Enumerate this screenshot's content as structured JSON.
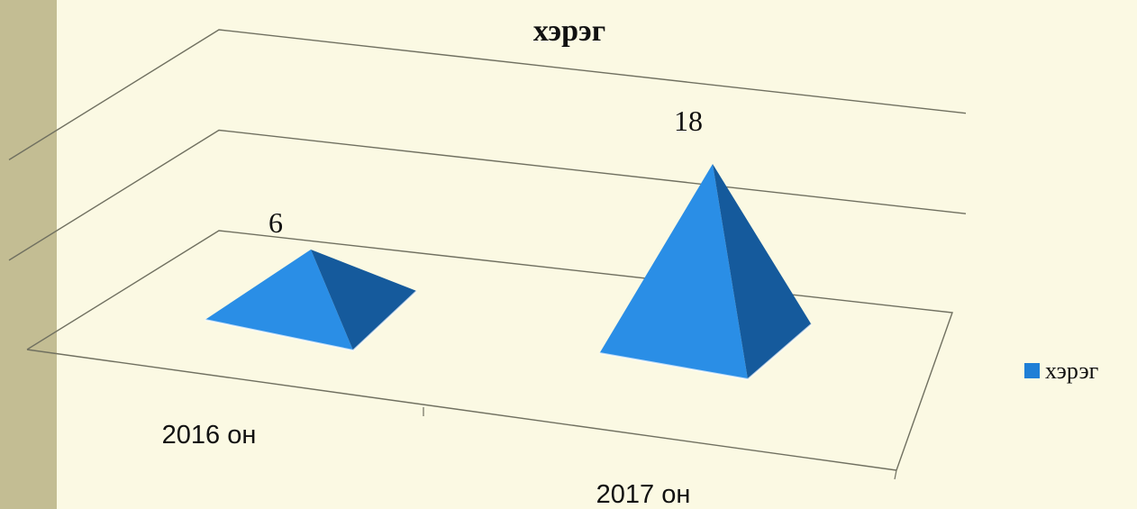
{
  "colors": {
    "background": "#fbf9e3",
    "side_strip": "#c3bd93",
    "series": "#1f7fd6",
    "series_dark": "#155a9c",
    "series_light": "#2a8ee6",
    "grid": "#707060"
  },
  "chart_data": {
    "type": "bar",
    "shape": "3d-pyramid",
    "title": "хэрэг",
    "categories": [
      "2016 он",
      "2017 он"
    ],
    "series": [
      {
        "name": "хэрэг",
        "values": [
          6,
          18
        ],
        "data_labels": [
          "6",
          "18"
        ]
      }
    ],
    "ylim": [
      0,
      20
    ],
    "grid": true,
    "legend_position": "right"
  }
}
